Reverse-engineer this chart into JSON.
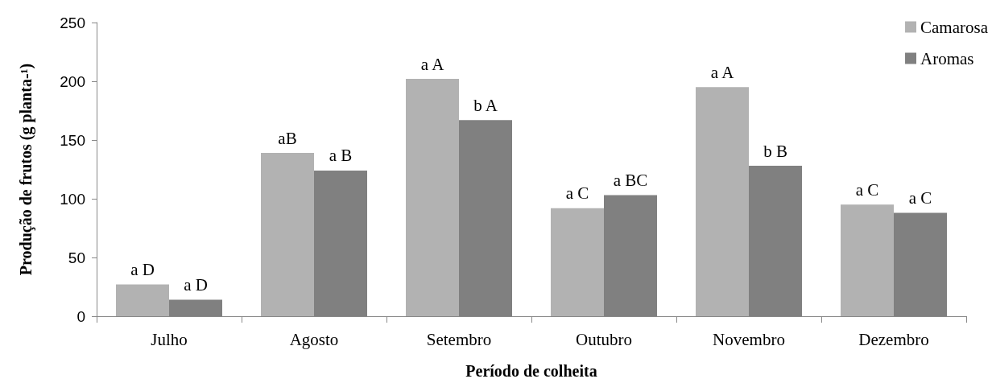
{
  "chart_data": {
    "type": "bar",
    "xlabel": "Período de colheita",
    "ylabel": "Produção de frutos (g planta-¹)",
    "categories": [
      "Julho",
      "Agosto",
      "Setembro",
      "Outubro",
      "Novembro",
      "Dezembro"
    ],
    "series": [
      {
        "name": "Camarosa",
        "color": "#b2b2b2",
        "values": [
          27,
          139,
          202,
          92,
          195,
          95
        ],
        "value_labels": [
          "a D",
          "aB",
          "a A",
          "a C",
          "a A",
          "a C"
        ]
      },
      {
        "name": "Aromas",
        "color": "#808080",
        "values": [
          14,
          124,
          167,
          103,
          128,
          88
        ],
        "value_labels": [
          "a D",
          "a B",
          "b A",
          "a BC",
          "b B",
          "a C"
        ]
      }
    ],
    "ylim": [
      0,
      250
    ],
    "yticks": [
      0,
      50,
      100,
      150,
      200,
      250
    ],
    "grid": false,
    "legend": "top right"
  }
}
